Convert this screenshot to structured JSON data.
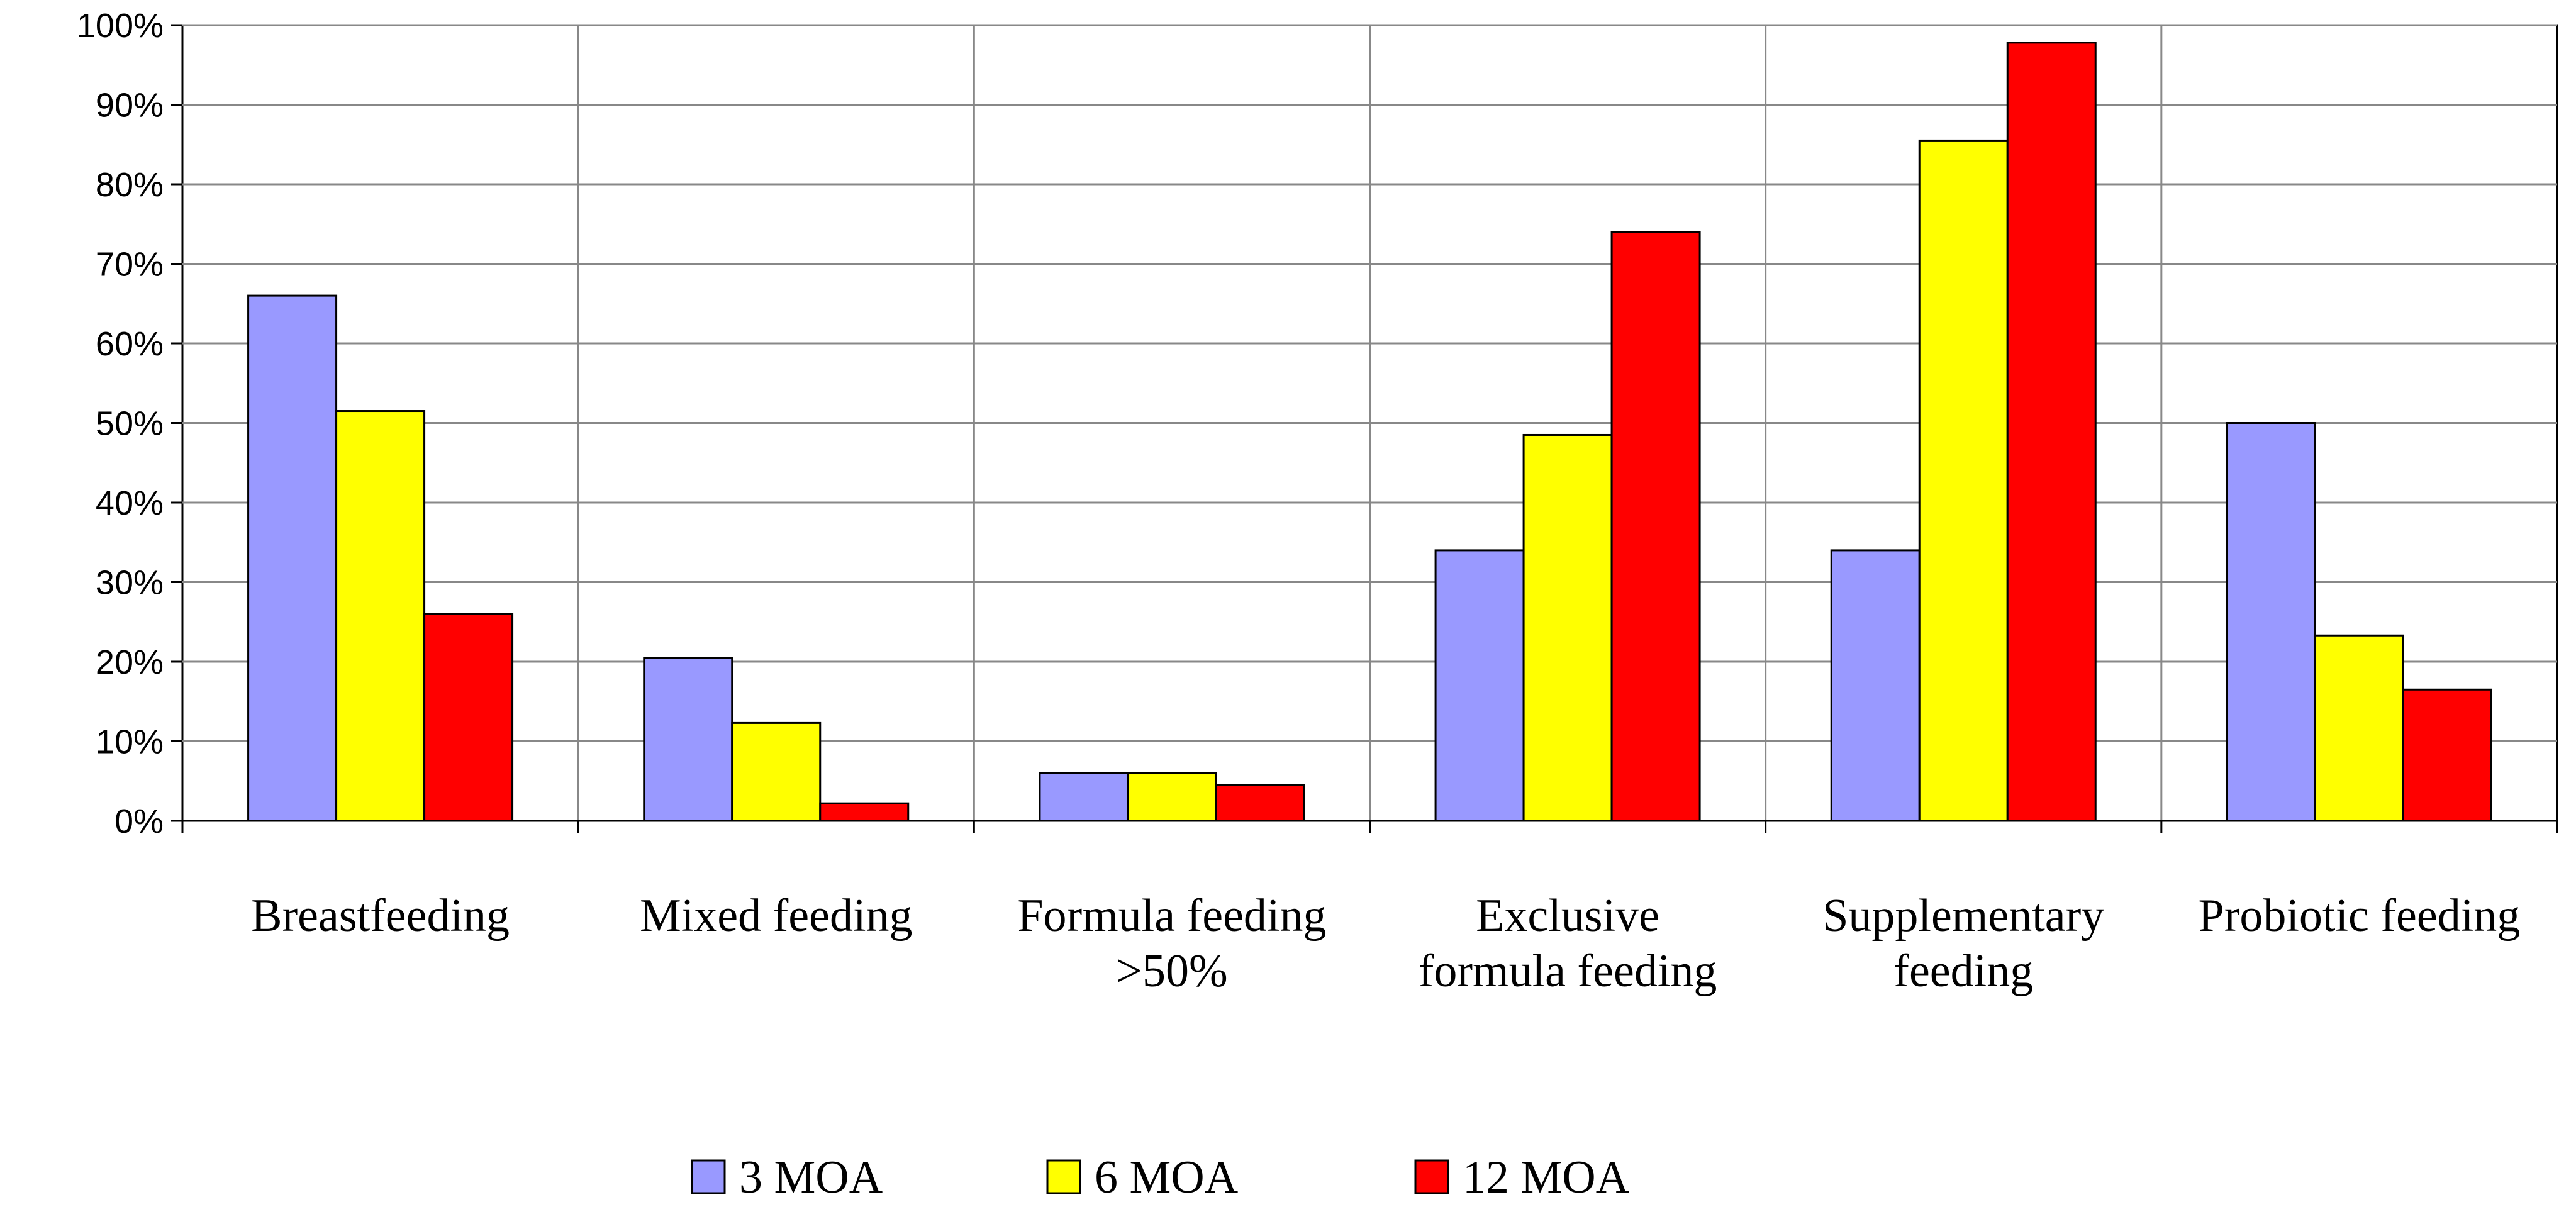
{
  "chart_data": {
    "type": "bar",
    "title": "",
    "xlabel": "",
    "ylabel": "",
    "ylim": [
      0,
      100
    ],
    "y_ticks": [
      "0%",
      "10%",
      "20%",
      "30%",
      "40%",
      "50%",
      "60%",
      "70%",
      "80%",
      "90%",
      "100%"
    ],
    "categories": [
      [
        "Breastfeeding"
      ],
      [
        "Mixed feeding"
      ],
      [
        "Formula feeding",
        ">50%"
      ],
      [
        "Exclusive",
        "formula feeding"
      ],
      [
        "Supplementary",
        "feeding"
      ],
      [
        "Probiotic feeding"
      ]
    ],
    "series": [
      {
        "name": "3 MOA",
        "color": "#9999ff",
        "values": [
          66,
          20.5,
          6,
          34,
          34,
          50
        ]
      },
      {
        "name": "6 MOA",
        "color": "#ffff00",
        "values": [
          51.5,
          12.3,
          6,
          48.5,
          85.5,
          23.3
        ]
      },
      {
        "name": "12 MOA",
        "color": "#ff0000",
        "values": [
          26,
          2.2,
          4.5,
          74,
          97.8,
          16.5
        ]
      }
    ],
    "legend_position": "bottom",
    "grid": true
  }
}
